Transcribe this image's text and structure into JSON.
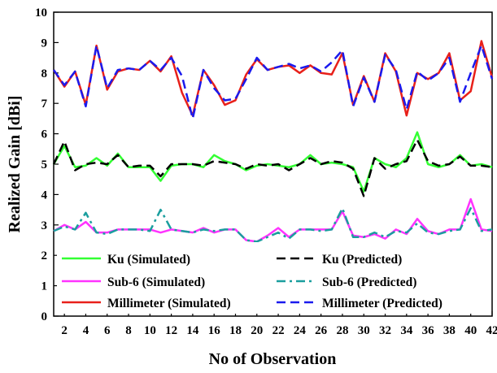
{
  "chart_data": {
    "type": "line",
    "title": "",
    "xlabel": "No of Observation",
    "ylabel": "Realized Gain [dBi]",
    "xlim": [
      1,
      42
    ],
    "ylim": [
      0,
      10
    ],
    "xticks": [
      2,
      4,
      6,
      8,
      10,
      12,
      14,
      16,
      18,
      20,
      22,
      24,
      26,
      28,
      30,
      32,
      34,
      36,
      38,
      40,
      42
    ],
    "yticks": [
      0,
      1,
      2,
      3,
      4,
      5,
      6,
      7,
      8,
      9,
      10
    ],
    "legend_position": "bottom",
    "x": [
      1,
      2,
      3,
      4,
      5,
      6,
      7,
      8,
      9,
      10,
      11,
      12,
      13,
      14,
      15,
      16,
      17,
      18,
      19,
      20,
      21,
      22,
      23,
      24,
      25,
      26,
      27,
      28,
      29,
      30,
      31,
      32,
      33,
      34,
      35,
      36,
      37,
      38,
      39,
      40,
      41,
      42
    ],
    "series": [
      {
        "name": "Ku (Simulated)",
        "color": "#33ff33",
        "dash": "solid",
        "values": [
          5.0,
          5.6,
          4.9,
          4.95,
          5.2,
          4.95,
          5.35,
          4.9,
          4.9,
          4.9,
          4.45,
          4.95,
          5.0,
          5.0,
          4.9,
          5.3,
          5.1,
          5.0,
          4.8,
          4.95,
          5.0,
          4.95,
          4.9,
          5.0,
          5.3,
          5.0,
          5.05,
          5.0,
          4.9,
          4.1,
          5.2,
          5.0,
          4.9,
          5.2,
          6.05,
          5.0,
          4.9,
          5.0,
          5.3,
          4.95,
          5.0,
          4.9
        ]
      },
      {
        "name": "Ku (Predicted)",
        "color": "#000000",
        "dash": "dashed",
        "values": [
          5.0,
          5.75,
          4.8,
          5.0,
          5.05,
          5.0,
          5.3,
          4.9,
          4.95,
          4.95,
          4.6,
          5.0,
          5.0,
          5.0,
          4.95,
          5.1,
          5.05,
          5.0,
          4.85,
          5.0,
          4.95,
          5.0,
          4.8,
          5.0,
          5.2,
          5.0,
          5.1,
          5.05,
          4.85,
          3.95,
          5.2,
          4.85,
          5.0,
          5.1,
          5.8,
          5.1,
          4.95,
          5.0,
          5.25,
          4.95,
          4.95,
          4.9
        ]
      },
      {
        "name": "Sub-6 (Simulated)",
        "color": "#ff33ff",
        "dash": "solid",
        "values": [
          2.8,
          3.0,
          2.85,
          3.1,
          2.75,
          2.75,
          2.85,
          2.85,
          2.85,
          2.85,
          2.75,
          2.85,
          2.8,
          2.75,
          2.9,
          2.75,
          2.85,
          2.85,
          2.5,
          2.45,
          2.65,
          2.9,
          2.6,
          2.85,
          2.85,
          2.85,
          2.85,
          3.45,
          2.65,
          2.6,
          2.7,
          2.55,
          2.85,
          2.7,
          3.2,
          2.8,
          2.7,
          2.85,
          2.85,
          3.85,
          2.85,
          2.8
        ]
      },
      {
        "name": "Sub-6 (Predicted)",
        "color": "#1a9e9e",
        "dash": "dashdot",
        "values": [
          2.8,
          2.95,
          2.85,
          3.4,
          2.75,
          2.7,
          2.85,
          2.85,
          2.85,
          2.8,
          3.5,
          2.85,
          2.8,
          2.75,
          2.85,
          2.8,
          2.85,
          2.85,
          2.5,
          2.45,
          2.6,
          2.75,
          2.55,
          2.85,
          2.85,
          2.8,
          2.85,
          3.55,
          2.6,
          2.6,
          2.75,
          2.6,
          2.8,
          2.75,
          3.05,
          2.75,
          2.7,
          2.8,
          2.85,
          3.55,
          2.8,
          2.85
        ]
      },
      {
        "name": "Millimeter (Simulated)",
        "color": "#e8201a",
        "dash": "solid",
        "values": [
          8.1,
          7.55,
          8.05,
          6.95,
          8.9,
          7.45,
          8.05,
          8.15,
          8.1,
          8.4,
          8.05,
          8.55,
          7.35,
          6.6,
          8.1,
          7.6,
          6.95,
          7.1,
          7.95,
          8.45,
          8.1,
          8.2,
          8.25,
          8.0,
          8.25,
          8.0,
          7.95,
          8.65,
          6.95,
          7.9,
          7.05,
          8.65,
          8.05,
          6.6,
          8.0,
          7.8,
          8.0,
          8.65,
          7.1,
          7.4,
          9.05,
          7.85
        ]
      },
      {
        "name": "Millimeter (Predicted)",
        "color": "#1a1aee",
        "dash": "dashed",
        "values": [
          8.1,
          7.6,
          8.05,
          6.9,
          8.9,
          7.5,
          8.1,
          8.15,
          8.1,
          8.4,
          8.1,
          8.5,
          7.9,
          6.5,
          8.1,
          7.5,
          7.1,
          7.15,
          7.8,
          8.5,
          8.1,
          8.2,
          8.3,
          8.15,
          8.25,
          8.05,
          8.35,
          8.75,
          6.9,
          7.85,
          7.05,
          8.6,
          8.1,
          6.8,
          8.05,
          7.75,
          8.0,
          8.5,
          7.05,
          8.0,
          8.9,
          7.8
        ]
      }
    ]
  }
}
